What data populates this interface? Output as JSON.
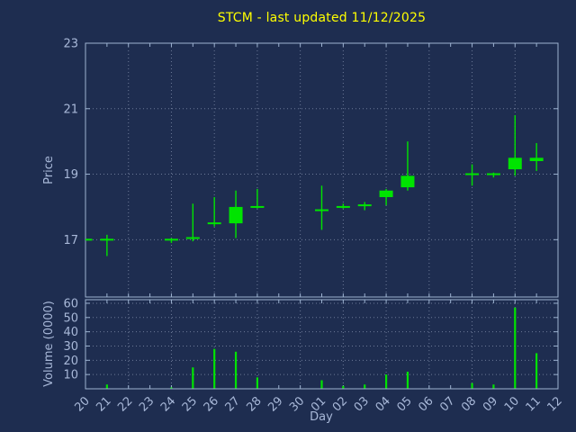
{
  "chart_data": {
    "type": "candlestick",
    "title": "STCM - last updated 11/12/2025",
    "xlabel": "Day",
    "price_ylabel": "Price",
    "volume_ylabel": "Volume (0000)",
    "x_ticklabels": [
      "20",
      "21",
      "22",
      "23",
      "24",
      "25",
      "26",
      "27",
      "28",
      "29",
      "30",
      "01",
      "02",
      "03",
      "04",
      "05",
      "06",
      "07",
      "08",
      "09",
      "10",
      "11",
      "12"
    ],
    "price_ticks": [
      17,
      19,
      21,
      23
    ],
    "price_range": [
      15.25,
      23
    ],
    "volume_ticks": [
      10,
      20,
      30,
      40,
      50,
      60
    ],
    "volume_range": [
      0,
      62.5
    ],
    "grid": true,
    "legend": "none",
    "colors": {
      "bg": "#1e2d50",
      "candle": "#00e400",
      "grid": "#b9c6de",
      "axis": "#9db3d1",
      "text": "#a8b8d8",
      "title": "#ffff00"
    },
    "candles": [
      {
        "day": "20",
        "open": 17.0,
        "high": 17.0,
        "low": 17.0,
        "close": 17.0,
        "volume": 0
      },
      {
        "day": "21",
        "open": 17.0,
        "high": 17.15,
        "low": 16.5,
        "close": 17.0,
        "volume": 3
      },
      {
        "day": "22",
        "open": null,
        "high": null,
        "low": null,
        "close": null,
        "volume": 0
      },
      {
        "day": "23",
        "open": null,
        "high": null,
        "low": null,
        "close": null,
        "volume": 0
      },
      {
        "day": "24",
        "open": 17.0,
        "high": 17.05,
        "low": 16.9,
        "close": 17.0,
        "volume": 1
      },
      {
        "day": "25",
        "open": 17.0,
        "high": 18.1,
        "low": 16.95,
        "close": 17.05,
        "volume": 15
      },
      {
        "day": "26",
        "open": 17.45,
        "high": 18.3,
        "low": 17.4,
        "close": 17.5,
        "volume": 28
      },
      {
        "day": "27",
        "open": 17.5,
        "high": 18.5,
        "low": 17.05,
        "close": 18.0,
        "volume": 26
      },
      {
        "day": "28",
        "open": 18.0,
        "high": 18.55,
        "low": 17.95,
        "close": 18.0,
        "volume": 8
      },
      {
        "day": "29",
        "open": null,
        "high": null,
        "low": null,
        "close": null,
        "volume": 0
      },
      {
        "day": "30",
        "open": null,
        "high": null,
        "low": null,
        "close": null,
        "volume": 0
      },
      {
        "day": "01",
        "open": 17.9,
        "high": 18.65,
        "low": 17.3,
        "close": 17.9,
        "volume": 6
      },
      {
        "day": "02",
        "open": 18.0,
        "high": 18.1,
        "low": 17.95,
        "close": 18.0,
        "volume": 2
      },
      {
        "day": "03",
        "open": 18.0,
        "high": 18.15,
        "low": 17.9,
        "close": 18.05,
        "volume": 3
      },
      {
        "day": "04",
        "open": 18.3,
        "high": 18.55,
        "low": 18.05,
        "close": 18.5,
        "volume": 10
      },
      {
        "day": "05",
        "open": 18.6,
        "high": 20.0,
        "low": 18.5,
        "close": 18.95,
        "volume": 12
      },
      {
        "day": "06",
        "open": null,
        "high": null,
        "low": null,
        "close": null,
        "volume": 0
      },
      {
        "day": "07",
        "open": null,
        "high": null,
        "low": null,
        "close": null,
        "volume": 0
      },
      {
        "day": "08",
        "open": 19.0,
        "high": 19.3,
        "low": 18.65,
        "close": 19.0,
        "volume": 4
      },
      {
        "day": "09",
        "open": 19.0,
        "high": 19.05,
        "low": 18.9,
        "close": 19.0,
        "volume": 3
      },
      {
        "day": "10",
        "open": 19.15,
        "high": 20.8,
        "low": 18.95,
        "close": 19.5,
        "volume": 57
      },
      {
        "day": "11",
        "open": 19.4,
        "high": 19.95,
        "low": 19.1,
        "close": 19.5,
        "volume": 25
      },
      {
        "day": "12",
        "open": null,
        "high": null,
        "low": null,
        "close": null,
        "volume": 0
      }
    ]
  }
}
